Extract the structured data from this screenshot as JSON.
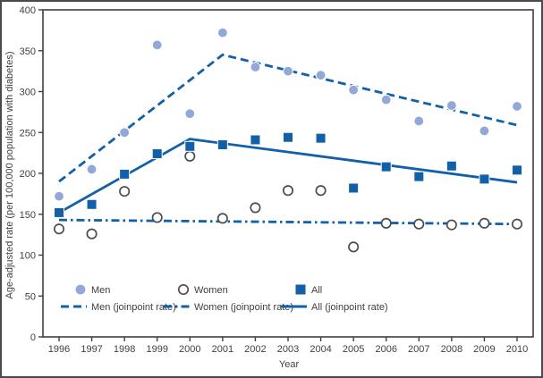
{
  "chart_data": {
    "type": "scatter",
    "title": "",
    "xlabel": "Year",
    "ylabel": "Age-adjusted rate (per 100,000 population with diabetes)",
    "x": [
      1996,
      1997,
      1998,
      1999,
      2000,
      2001,
      2002,
      2003,
      2004,
      2005,
      2006,
      2007,
      2008,
      2009,
      2010
    ],
    "ylim": [
      0,
      400
    ],
    "ytick_step": 50,
    "grid": false,
    "legend_position": "inside-bottom-left",
    "series": [
      {
        "name": "Men",
        "kind": "scatter",
        "marker": "filled-circle",
        "color": "#91a8d8",
        "values": [
          172,
          205,
          250,
          357,
          273,
          372,
          330,
          325,
          320,
          302,
          290,
          264,
          283,
          252,
          282
        ]
      },
      {
        "name": "Women",
        "kind": "scatter",
        "marker": "open-circle",
        "color": "#4d4d4d",
        "values": [
          132,
          126,
          178,
          146,
          221,
          145,
          158,
          179,
          179,
          110,
          139,
          138,
          137,
          139,
          138
        ]
      },
      {
        "name": "All",
        "kind": "scatter",
        "marker": "filled-square",
        "color": "#1160a8",
        "values": [
          152,
          162,
          199,
          224,
          233,
          235,
          241,
          244,
          243,
          182,
          208,
          196,
          209,
          193,
          204
        ]
      },
      {
        "name": "Men (joinpoint rate)",
        "kind": "line",
        "style": "dashed",
        "color": "#1160a8",
        "points": [
          [
            1996,
            190
          ],
          [
            2001,
            345
          ],
          [
            2010,
            259
          ]
        ]
      },
      {
        "name": "Women (joinpoint rate)",
        "kind": "line",
        "style": "dashdot",
        "color": "#1160a8",
        "points": [
          [
            1996,
            143
          ],
          [
            2010,
            138
          ]
        ]
      },
      {
        "name": "All (joinpoint rate)",
        "kind": "line",
        "style": "solid",
        "color": "#1160a8",
        "points": [
          [
            1996,
            152
          ],
          [
            2000,
            242
          ],
          [
            2010,
            189
          ]
        ]
      }
    ],
    "legend": {
      "rows": [
        [
          {
            "marker": "filled-circle",
            "label": "Men"
          },
          {
            "marker": "open-circle",
            "label": "Women"
          },
          {
            "marker": "filled-square",
            "label": "All"
          }
        ],
        [
          {
            "marker": "dashed-line",
            "label": "Men (joinpoint rate)"
          },
          {
            "marker": "dashdot-line",
            "label": "Women (joinpoint rate)"
          },
          {
            "marker": "solid-line",
            "label": "All (joinpoint rate)"
          }
        ]
      ]
    },
    "colors": {
      "accent_dark_blue": "#1160a8",
      "accent_light_blue": "#91a8d8",
      "open_marker_stroke": "#4d4d4d",
      "axis": "#3f3f3f",
      "text": "#3f3f3f"
    }
  }
}
